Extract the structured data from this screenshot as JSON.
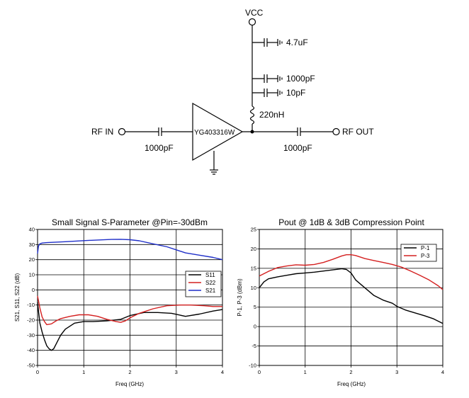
{
  "schematic": {
    "vcc_label": "VCC",
    "cap_4_7uF": "4.7uF",
    "cap_1000pF_bypass": "1000pF",
    "cap_10pF": "10pF",
    "inductor": "220nH",
    "amp_part": "YG403316W",
    "rf_in_label": "RF IN",
    "rf_out_label": "RF OUT",
    "cap_in": "1000pF",
    "cap_out": "1000pF"
  },
  "chart_data": [
    {
      "type": "line",
      "title": "Small Signal S-Parameter @Pin=-30dBm",
      "xlabel": "Freq (GHz)",
      "ylabel": "S21,  S11,  S22 (dB)",
      "xlim": [
        0,
        4
      ],
      "ylim": [
        -50,
        40
      ],
      "xticks": [
        "0",
        "1",
        "2",
        "3",
        "4"
      ],
      "yticks": [
        "-50",
        "-40",
        "-30",
        "-20",
        "-10",
        "0",
        "10",
        "20",
        "30",
        "40"
      ],
      "grid": true,
      "legend_position": "right-middle",
      "series": [
        {
          "name": "S11",
          "color": "#000000",
          "x": [
            0,
            0.02,
            0.05,
            0.1,
            0.15,
            0.2,
            0.25,
            0.3,
            0.35,
            0.4,
            0.5,
            0.6,
            0.8,
            1.0,
            1.2,
            1.5,
            1.8,
            2.0,
            2.3,
            2.6,
            2.9,
            3.2,
            3.5,
            3.8,
            4.0
          ],
          "y": [
            -8,
            -14,
            -22,
            -28,
            -33,
            -37,
            -39,
            -40,
            -39,
            -36,
            -30,
            -26,
            -22,
            -21,
            -21,
            -20.5,
            -19.5,
            -17,
            -15,
            -15,
            -15.5,
            -17.5,
            -16,
            -14,
            -13
          ]
        },
        {
          "name": "S22",
          "color": "#d42020",
          "x": [
            0,
            0.05,
            0.1,
            0.15,
            0.2,
            0.3,
            0.4,
            0.5,
            0.7,
            0.9,
            1.1,
            1.3,
            1.5,
            1.7,
            1.8,
            1.9,
            2.0,
            2.2,
            2.5,
            2.8,
            3.1,
            3.3,
            3.6,
            3.8,
            4.0
          ],
          "y": [
            -4,
            -12,
            -18,
            -21,
            -23,
            -22.5,
            -20.5,
            -19,
            -17.5,
            -16.5,
            -16.5,
            -17.5,
            -19.5,
            -21,
            -21.5,
            -20.5,
            -18.5,
            -15.5,
            -12.5,
            -10.5,
            -10,
            -10,
            -10.5,
            -11,
            -11
          ]
        },
        {
          "name": "S21",
          "color": "#1f2fc8",
          "x": [
            0,
            0.02,
            0.05,
            0.1,
            0.2,
            0.4,
            0.6,
            0.8,
            1.0,
            1.3,
            1.6,
            1.8,
            2.0,
            2.2,
            2.5,
            2.8,
            3.0,
            3.2,
            3.5,
            3.8,
            4.0
          ],
          "y": [
            24,
            29,
            30.5,
            31,
            31.3,
            31.6,
            31.9,
            32.2,
            32.6,
            33,
            33.4,
            33.5,
            33.2,
            32.5,
            30.5,
            28.5,
            26.5,
            24.5,
            23,
            21.5,
            20
          ]
        }
      ]
    },
    {
      "type": "line",
      "title": "Pout @ 1dB & 3dB Compression Point",
      "xlabel": "Freq (GHz)",
      "ylabel": "P-1,  P-3  (dBm)",
      "xlim": [
        0,
        4
      ],
      "ylim": [
        -10,
        25
      ],
      "xticks": [
        "0",
        "1",
        "2",
        "3",
        "4"
      ],
      "yticks": [
        "-10",
        "-5",
        "0",
        "5",
        "10",
        "15",
        "20",
        "25"
      ],
      "grid": true,
      "legend_position": "top-right",
      "series": [
        {
          "name": "P-1",
          "color": "#000000",
          "x": [
            0,
            0.1,
            0.2,
            0.4,
            0.6,
            0.8,
            1.0,
            1.2,
            1.4,
            1.6,
            1.8,
            1.9,
            2.0,
            2.1,
            2.3,
            2.5,
            2.7,
            2.9,
            3.0,
            3.2,
            3.4,
            3.6,
            3.8,
            4.0
          ],
          "y": [
            10,
            11.5,
            12.3,
            12.8,
            13.2,
            13.6,
            13.8,
            14,
            14.3,
            14.6,
            14.9,
            14.7,
            13.8,
            12,
            10,
            8,
            6.8,
            6,
            5.2,
            4.2,
            3.5,
            2.8,
            2,
            0.8
          ]
        },
        {
          "name": "P-3",
          "color": "#d42020",
          "x": [
            0,
            0.2,
            0.4,
            0.6,
            0.8,
            1.0,
            1.2,
            1.4,
            1.6,
            1.8,
            1.9,
            2.0,
            2.1,
            2.3,
            2.5,
            2.7,
            2.9,
            3.1,
            3.3,
            3.5,
            3.7,
            3.9,
            4.0
          ],
          "y": [
            13,
            14.2,
            15.2,
            15.6,
            15.9,
            15.8,
            16,
            16.5,
            17.3,
            18.2,
            18.5,
            18.5,
            18.3,
            17.5,
            17,
            16.5,
            16,
            15.3,
            14.3,
            13.2,
            12,
            10.5,
            9.5
          ]
        }
      ]
    }
  ]
}
